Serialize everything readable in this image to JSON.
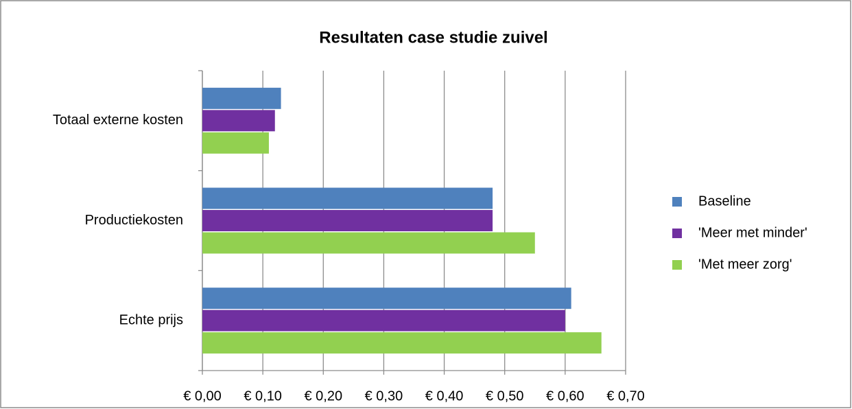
{
  "chart_data": {
    "type": "bar",
    "orientation": "horizontal",
    "title": "Resultaten case studie zuivel",
    "categories": [
      "Totaal externe kosten",
      "Productiekosten",
      "Echte prijs"
    ],
    "series": [
      {
        "name": "Baseline",
        "color": "#4f81bd",
        "values": [
          0.13,
          0.48,
          0.61
        ]
      },
      {
        "name": "'Meer met minder'",
        "color": "#7030a0",
        "values": [
          0.12,
          0.48,
          0.6
        ]
      },
      {
        "name": "'Met meer zorg'",
        "color": "#92d050",
        "values": [
          0.11,
          0.55,
          0.66
        ]
      }
    ],
    "xlim": [
      0,
      0.7
    ],
    "xticks": [
      {
        "value": 0,
        "label": "€ 0,00"
      },
      {
        "value": 0.1,
        "label": "€ 0,10"
      },
      {
        "value": 0.2,
        "label": "€ 0,20"
      },
      {
        "value": 0.3,
        "label": "€ 0,30"
      },
      {
        "value": 0.4,
        "label": "€ 0,40"
      },
      {
        "value": 0.5,
        "label": "€ 0,50"
      },
      {
        "value": 0.6,
        "label": "€ 0,60"
      },
      {
        "value": 0.7,
        "label": "€ 0,70"
      }
    ],
    "grid": true,
    "legend": "right"
  }
}
